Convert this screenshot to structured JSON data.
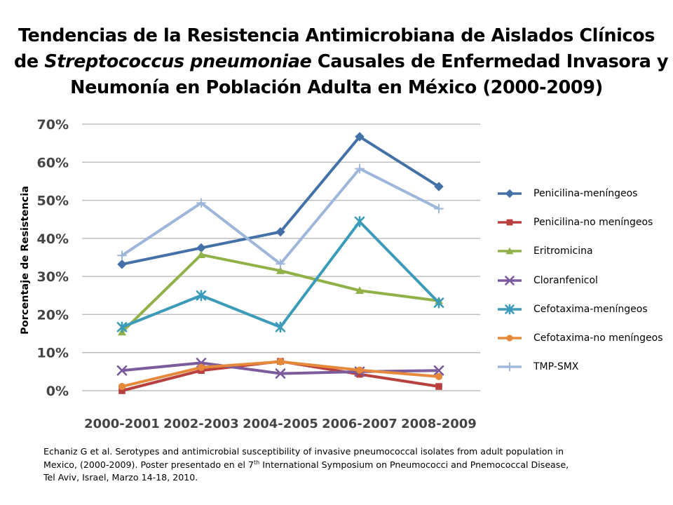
{
  "title": {
    "line1": "Tendencias de la Resistencia Antimicrobiana de Aislados Clínicos",
    "line2_pre": "de ",
    "line2_italic": "Streptococcus pneumoniae",
    "line2_post": " Causales de Enfermedad Invasora y",
    "line3": "Neumonía en Población Adulta en México (2000-2009)"
  },
  "chart_data": {
    "type": "line",
    "title": "Tendencias de la Resistencia Antimicrobiana de Aislados Clínicos de Streptococcus pneumoniae Causales de Enfermedad Invasora y Neumonía en Población Adulta en México (2000-2009)",
    "xlabel": "",
    "ylabel": "Porcentaje de Resistencia",
    "ylim": [
      0,
      70
    ],
    "yticks": [
      "0%",
      "10%",
      "20%",
      "30%",
      "40%",
      "50%",
      "60%",
      "70%"
    ],
    "grid": true,
    "legend_position": "right",
    "categories": [
      "2000-2001",
      "2002-2003",
      "2004-2005",
      "2006-2007",
      "2008-2009"
    ],
    "series": [
      {
        "name": "Penicilina-meníngeos",
        "values": [
          33.2,
          37.5,
          41.7,
          66.7,
          53.6
        ],
        "color": "#4470a8",
        "marker": "diamond"
      },
      {
        "name": "Penicilina-no meníngeos",
        "values": [
          0,
          5.3,
          7.7,
          4.3,
          1.1
        ],
        "color": "#b8413f",
        "marker": "square"
      },
      {
        "name": "Eritromicina",
        "values": [
          15.4,
          35.7,
          31.5,
          26.3,
          23.6
        ],
        "color": "#8fb148",
        "marker": "triangle"
      },
      {
        "name": "Cloranfenicol",
        "values": [
          5.3,
          7.3,
          4.5,
          5.0,
          5.3
        ],
        "color": "#7b5b9c",
        "marker": "x"
      },
      {
        "name": "Cefotaxima-meníngeos",
        "values": [
          16.7,
          25.0,
          16.7,
          44.4,
          23.1
        ],
        "color": "#3b9bb8",
        "marker": "star"
      },
      {
        "name": "Cefotaxima-no meníngeos",
        "values": [
          1.1,
          6.1,
          7.6,
          5.4,
          3.7
        ],
        "color": "#e6893a",
        "marker": "circle"
      },
      {
        "name": "TMP-SMX",
        "values": [
          35.5,
          49.3,
          33.3,
          58.3,
          47.8
        ],
        "color": "#9db6da",
        "marker": "plus"
      }
    ]
  },
  "citation": {
    "line1": "Echaniz G et al. Serotypes and antimicrobial susceptibility of invasive pneumococcal isolates from adult population in",
    "line2_pre": "Mexico, (2000-2009). Poster presentado en  el 7",
    "line2_sup": "th",
    "line2_post": " International Symposium on Pneumococci and Pnemococcal Disease,",
    "line3": "Tel Aviv, Israel, Marzo 14-18, 2010."
  }
}
